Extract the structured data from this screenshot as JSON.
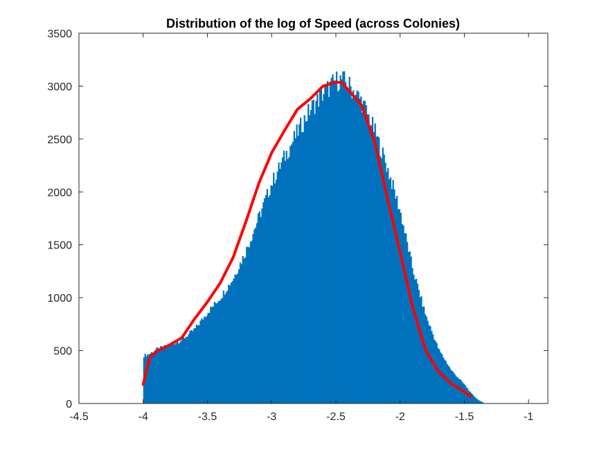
{
  "chart_data": {
    "type": "bar",
    "title": "Distribution of the log of Speed (across Colonies)",
    "xlabel": "",
    "ylabel": "",
    "xlim": [
      -4.5,
      -0.85
    ],
    "ylim": [
      0,
      3500
    ],
    "x_ticks": [
      -4.5,
      -4,
      -3.5,
      -3,
      -2.5,
      -2,
      -1.5,
      -1
    ],
    "x_tick_labels": [
      "-4.5",
      "-4",
      "-3.5",
      "-3",
      "-2.5",
      "-2",
      "-1.5",
      "-1"
    ],
    "y_ticks": [
      0,
      500,
      1000,
      1500,
      2000,
      2500,
      3000,
      3500
    ],
    "y_tick_labels": [
      "0",
      "500",
      "1000",
      "1500",
      "2000",
      "2500",
      "3000",
      "3500"
    ],
    "grid": false,
    "histogram": {
      "color": "#0072BD",
      "bin_width": 0.01,
      "anchor_x": [
        -4.0,
        -3.95,
        -3.9,
        -3.8,
        -3.7,
        -3.6,
        -3.5,
        -3.4,
        -3.3,
        -3.2,
        -3.1,
        -3.0,
        -2.9,
        -2.8,
        -2.7,
        -2.6,
        -2.5,
        -2.45,
        -2.4,
        -2.3,
        -2.2,
        -2.1,
        -2.0,
        -1.9,
        -1.8,
        -1.7,
        -1.6,
        -1.5,
        -1.45,
        -1.4,
        -1.35
      ],
      "anchor_y": [
        450,
        470,
        510,
        550,
        600,
        700,
        860,
        1000,
        1180,
        1440,
        1760,
        2080,
        2330,
        2560,
        2780,
        2930,
        3050,
        3060,
        3010,
        2860,
        2580,
        2230,
        1820,
        1260,
        830,
        510,
        310,
        180,
        100,
        40,
        5
      ]
    },
    "fit_curve": {
      "color": "#FF0000",
      "x": [
        -4.0,
        -3.95,
        -3.9,
        -3.8,
        -3.7,
        -3.6,
        -3.5,
        -3.4,
        -3.3,
        -3.2,
        -3.1,
        -3.0,
        -2.9,
        -2.8,
        -2.7,
        -2.6,
        -2.5,
        -2.45,
        -2.4,
        -2.3,
        -2.2,
        -2.1,
        -2.0,
        -1.9,
        -1.8,
        -1.7,
        -1.6,
        -1.5,
        -1.45
      ],
      "y": [
        180,
        430,
        490,
        550,
        620,
        800,
        960,
        1140,
        1380,
        1720,
        2080,
        2370,
        2580,
        2780,
        2880,
        3000,
        3040,
        3030,
        2960,
        2820,
        2480,
        1950,
        1430,
        900,
        500,
        300,
        185,
        110,
        70
      ]
    }
  }
}
